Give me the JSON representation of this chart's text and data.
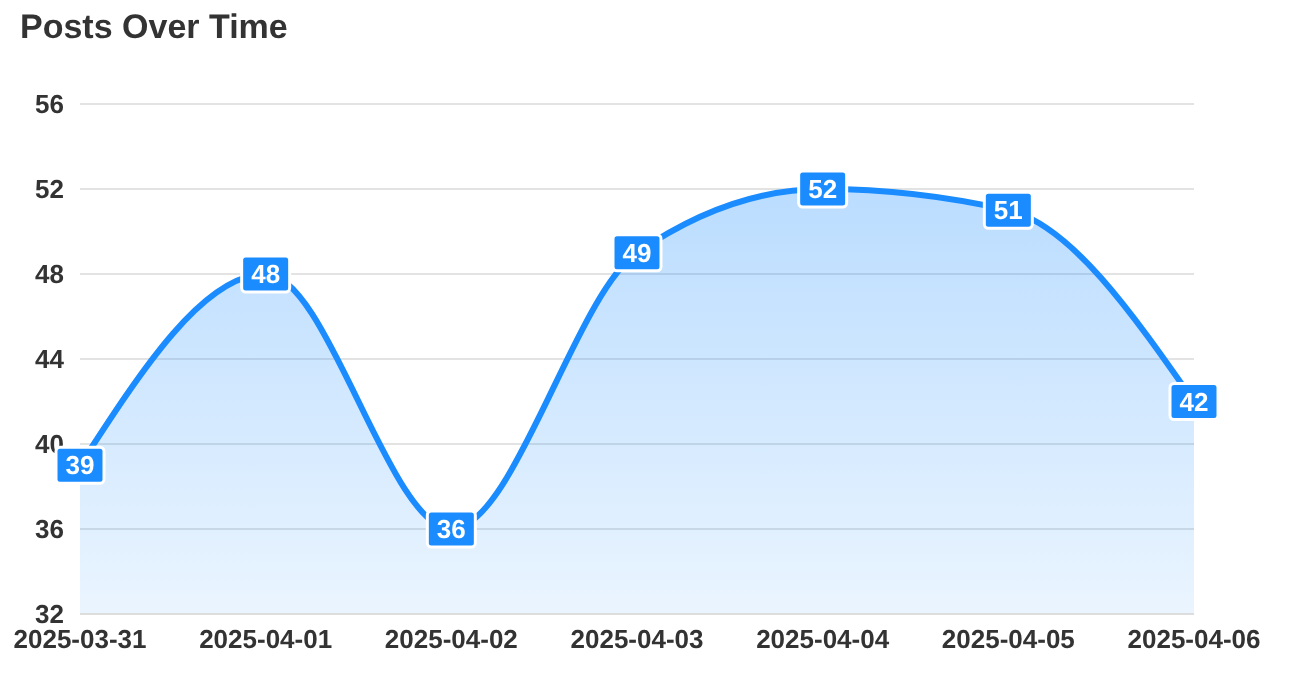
{
  "chart_data": {
    "type": "area",
    "title": "Posts Over Time",
    "categories": [
      "2025-03-31",
      "2025-04-01",
      "2025-04-02",
      "2025-04-03",
      "2025-04-04",
      "2025-04-05",
      "2025-04-06"
    ],
    "values": [
      39,
      48,
      36,
      49,
      52,
      51,
      42
    ],
    "color": "#1a8cff",
    "ylim": [
      32,
      56
    ],
    "yticks": [
      32,
      36,
      40,
      44,
      48,
      52,
      56
    ],
    "grid": "y",
    "data_labels": true
  }
}
